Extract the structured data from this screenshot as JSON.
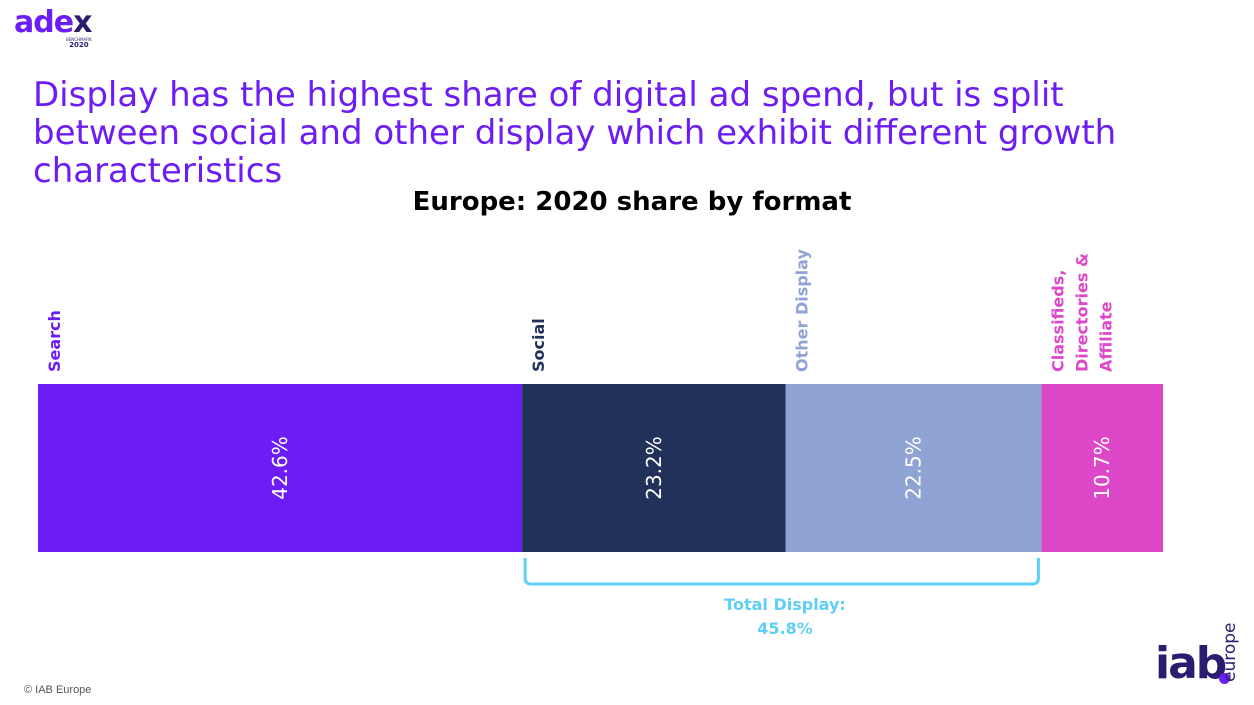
{
  "logo": {
    "word_main": "ade",
    "word_x": "x",
    "sub_line1": "BENCHMARK",
    "sub_line2": "2020"
  },
  "headline": "Display has the highest share of digital ad spend, but is split between social and other display which exhibit different growth characteristics",
  "chart_data": {
    "type": "bar",
    "orientation": "horizontal-stacked",
    "title": "Europe: 2020 share by format",
    "unit": "%",
    "series": [
      {
        "name": "Search",
        "value": 42.6,
        "label": "42.6%",
        "color": "#6c1cf5",
        "label_lines": [
          "Search"
        ]
      },
      {
        "name": "Social",
        "value": 23.2,
        "label": "23.2%",
        "color": "#22315a",
        "label_lines": [
          "Social"
        ]
      },
      {
        "name": "Other Display",
        "value": 22.5,
        "label": "22.5%",
        "color": "#8fa3d4",
        "label_lines": [
          "Other Display"
        ]
      },
      {
        "name": "Classifieds, Directories & Affiliate",
        "value": 10.7,
        "label": "10.7%",
        "color": "#dd48c8",
        "label_lines": [
          "Classifieds,",
          "Directories &",
          "Affiliate"
        ]
      }
    ],
    "bracket": {
      "label_line1": "Total Display:",
      "label_line2": "45.8%",
      "spans": [
        "Social",
        "Other Display"
      ],
      "color": "#5fd0f5"
    }
  },
  "footer": {
    "copyright": "© IAB Europe",
    "brand_word": "iab",
    "brand_sub": "europe"
  }
}
